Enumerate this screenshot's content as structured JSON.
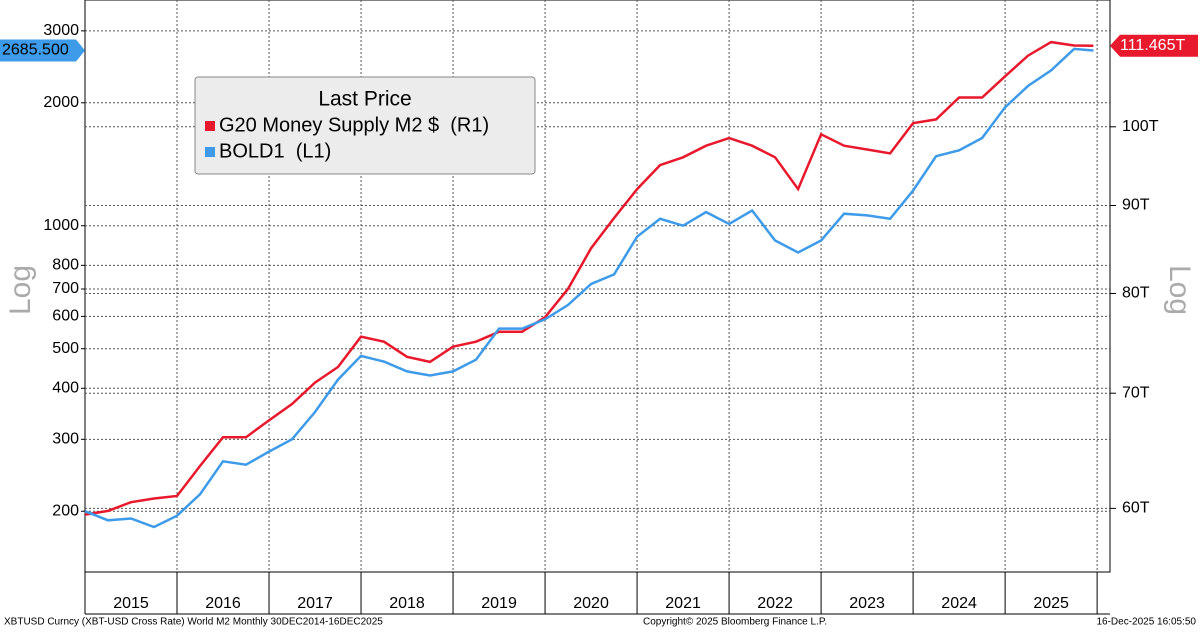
{
  "chart_data": {
    "type": "line",
    "y_axis_label": "Log",
    "y2_axis_label": "Log",
    "legend_title": "Last Price",
    "legend": "upper-left",
    "x": [
      2015.0,
      2015.25,
      2015.5,
      2015.75,
      2016.0,
      2016.25,
      2016.5,
      2016.75,
      2017.0,
      2017.25,
      2017.5,
      2017.75,
      2018.0,
      2018.25,
      2018.5,
      2018.75,
      2019.0,
      2019.25,
      2019.5,
      2019.75,
      2020.0,
      2020.25,
      2020.5,
      2020.75,
      2021.0,
      2021.25,
      2021.5,
      2021.75,
      2022.0,
      2022.25,
      2022.5,
      2022.75,
      2023.0,
      2023.25,
      2023.5,
      2023.75,
      2024.0,
      2024.25,
      2024.5,
      2024.75,
      2025.0,
      2025.25,
      2025.5,
      2025.75,
      2025.96
    ],
    "xlim": [
      2015,
      2026.14
    ],
    "xticks": [
      2015,
      2016,
      2017,
      2018,
      2019,
      2020,
      2021,
      2022,
      2023,
      2024,
      2025
    ],
    "ylim": [
      142,
      3570
    ],
    "log_y": true,
    "yticks": [
      200,
      300,
      400,
      500,
      600,
      700,
      800,
      1000,
      2000,
      3000
    ],
    "y2lim": [
      55.1,
      118.5
    ],
    "y2ticks": [
      {
        "value": 60,
        "label": "60T"
      },
      {
        "value": 70,
        "label": "70T"
      },
      {
        "value": 80,
        "label": "80T"
      },
      {
        "value": 90,
        "label": "90T"
      },
      {
        "value": 100,
        "label": "100T"
      }
    ],
    "grid": true,
    "series": [
      {
        "name": "G20 Money Supply M2 $  (R1)",
        "color": "#e8192c",
        "axis": "y2",
        "values": [
          59.5,
          59.8,
          60.5,
          60.8,
          61.0,
          63.5,
          66,
          66,
          67.5,
          69,
          71,
          72.5,
          75.5,
          75,
          73.5,
          73,
          74.5,
          75,
          76,
          76,
          77.5,
          80.5,
          85,
          88.5,
          92,
          95,
          96,
          97.5,
          98.5,
          97.5,
          96,
          92,
          99,
          97.5,
          97,
          96.5,
          100.5,
          101,
          104,
          104,
          107,
          110,
          112,
          111.5,
          111.465
        ],
        "value_labels": [
          null,
          null,
          null,
          null,
          null,
          null,
          null,
          null,
          null,
          null,
          null,
          null,
          null,
          null,
          null,
          null,
          null,
          null,
          null,
          null,
          null,
          null,
          null,
          null,
          null,
          null,
          null,
          null,
          null,
          null,
          null,
          null,
          null,
          null,
          null,
          null,
          null,
          null,
          null,
          null,
          null,
          null,
          null,
          null,
          "111.465T"
        ]
      },
      {
        "name": "BOLD1  (L1)",
        "color": "#3d9be9",
        "values": [
          200,
          190,
          192,
          183,
          195,
          220,
          265,
          260,
          280,
          300,
          350,
          420,
          480,
          465,
          440,
          430,
          440,
          470,
          560,
          560,
          590,
          640,
          720,
          760,
          940,
          1040,
          1000,
          1080,
          1010,
          1090,
          920,
          860,
          920,
          1070,
          1060,
          1040,
          1220,
          1480,
          1530,
          1640,
          1950,
          2200,
          2400,
          2710,
          2685.5
        ],
        "value_labels": [
          null,
          null,
          null,
          null,
          null,
          null,
          null,
          null,
          null,
          null,
          null,
          null,
          null,
          null,
          null,
          null,
          null,
          null,
          null,
          null,
          null,
          null,
          null,
          null,
          null,
          null,
          null,
          null,
          null,
          null,
          null,
          null,
          null,
          null,
          null,
          null,
          null,
          null,
          null,
          null,
          null,
          null,
          null,
          null,
          "2685.500"
        ]
      }
    ],
    "footer_left": "XBTUSD Curncy (XBT-USD Cross Rate) World M2 Monthly 30DEC2014-16DEC2025",
    "footer_center": "Copyright© 2025 Bloomberg Finance L.P.",
    "footer_right": "16-Dec-2025 16:05:50"
  }
}
